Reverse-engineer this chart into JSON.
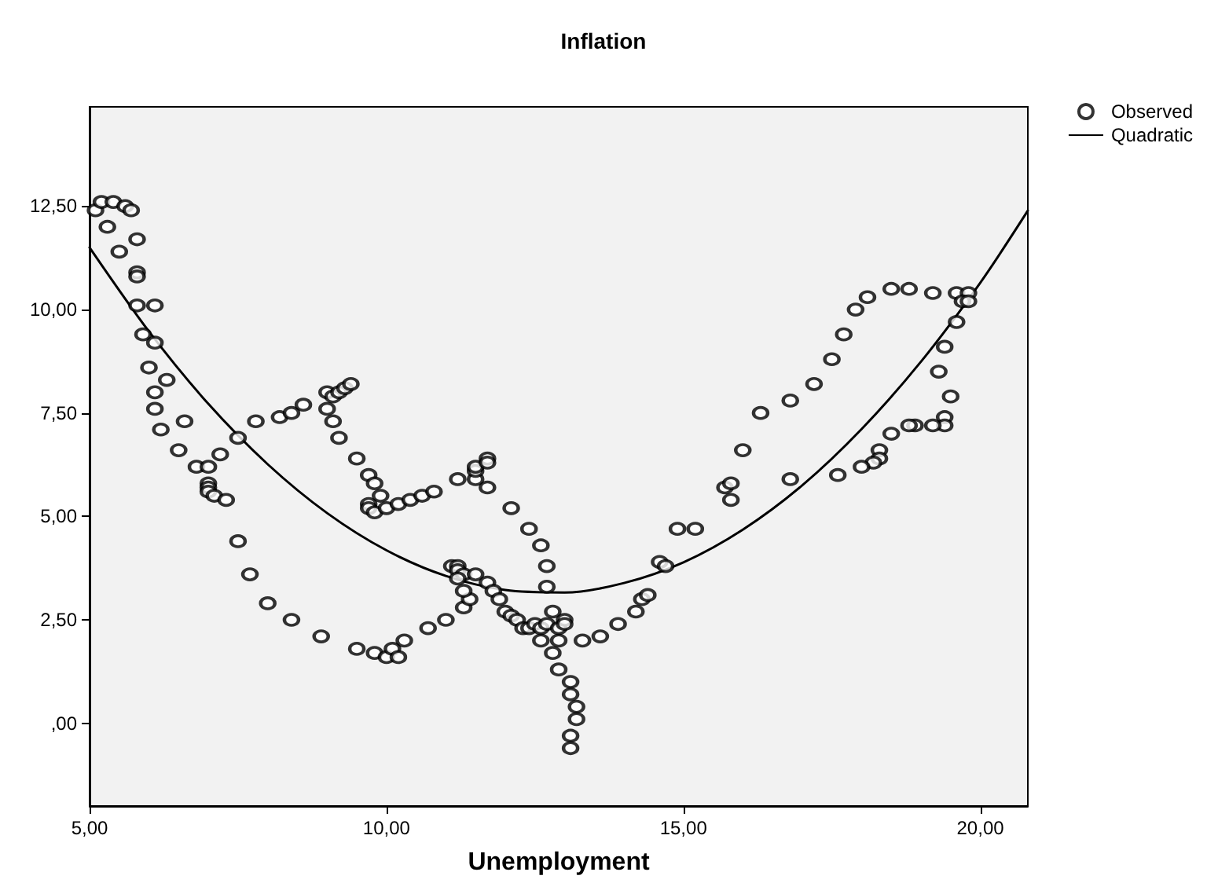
{
  "chart_data": {
    "type": "scatter",
    "title": "Inflation",
    "xlabel": "Unemployment",
    "xlim": [
      5,
      20.8
    ],
    "ylim": [
      -2,
      14.9
    ],
    "xticks": [
      {
        "value": 5,
        "label": "5,00"
      },
      {
        "value": 10,
        "label": "10,00"
      },
      {
        "value": 15,
        "label": "15,00"
      },
      {
        "value": 20,
        "label": "20,00"
      }
    ],
    "yticks": [
      {
        "value": 0,
        "label": ",00"
      },
      {
        "value": 2.5,
        "label": "2,50"
      },
      {
        "value": 5,
        "label": "5,00"
      },
      {
        "value": 7.5,
        "label": "7,50"
      },
      {
        "value": 10,
        "label": "10,00"
      },
      {
        "value": 12.5,
        "label": "12,50"
      }
    ],
    "grid": false,
    "legend": "top right",
    "series": [
      {
        "name": "Observed",
        "marker": "circle",
        "color": "#000000",
        "x": [
          5.1,
          5.2,
          5.4,
          5.3,
          5.6,
          5.7,
          5.5,
          5.8,
          5.8,
          5.8,
          5.8,
          6.1,
          5.9,
          6.1,
          6.0,
          6.1,
          6.3,
          6.1,
          6.2,
          6.6,
          6.5,
          6.8,
          7.0,
          7.0,
          7.0,
          7.0,
          7.1,
          7.3,
          7.2,
          7.5,
          7.5,
          7.7,
          8.0,
          8.4,
          8.9,
          7.8,
          8.2,
          8.4,
          8.6,
          9.0,
          9.1,
          9.2,
          9.3,
          9.4,
          9.0,
          9.1,
          9.2,
          9.5,
          9.7,
          9.8,
          9.9,
          9.7,
          9.7,
          9.8,
          10.0,
          10.2,
          10.4,
          10.6,
          10.8,
          11.2,
          11.5,
          11.5,
          11.5,
          11.7,
          11.7,
          11.7,
          12.1,
          12.4,
          12.6,
          12.7,
          12.7,
          9.5,
          9.8,
          10.0,
          10.1,
          10.2,
          10.3,
          10.7,
          11.0,
          11.3,
          11.4,
          11.3,
          11.1,
          11.2,
          11.2,
          11.3,
          11.2,
          11.5,
          11.7,
          11.8,
          11.9,
          12.0,
          12.1,
          12.2,
          12.3,
          12.4,
          12.5,
          12.6,
          12.6,
          12.7,
          12.8,
          12.8,
          12.9,
          12.9,
          13.0,
          13.0,
          12.9,
          13.1,
          13.1,
          13.2,
          13.2,
          13.1,
          13.1,
          13.3,
          13.6,
          13.9,
          14.2,
          14.3,
          14.4,
          14.6,
          14.7,
          14.9,
          15.2,
          15.7,
          15.8,
          15.8,
          16.0,
          16.3,
          16.8,
          16.8,
          17.2,
          17.5,
          17.7,
          17.9,
          18.1,
          18.5,
          18.8,
          19.2,
          19.6,
          19.8,
          19.7,
          19.8,
          19.6,
          19.4,
          19.3,
          19.5,
          19.4,
          19.4,
          19.2,
          18.9,
          18.8,
          18.5,
          18.3,
          18.3,
          18.2,
          18.0,
          17.6
        ],
        "values": [
          12.4,
          12.6,
          12.6,
          12.0,
          12.5,
          12.4,
          11.4,
          11.7,
          10.9,
          10.8,
          10.1,
          10.1,
          9.4,
          9.2,
          8.6,
          8.0,
          8.3,
          7.6,
          7.1,
          7.3,
          6.6,
          6.2,
          6.2,
          5.8,
          5.7,
          5.6,
          5.5,
          5.4,
          6.5,
          6.9,
          4.4,
          3.6,
          2.9,
          2.5,
          2.1,
          7.3,
          7.4,
          7.5,
          7.7,
          8.0,
          7.9,
          8.0,
          8.1,
          8.2,
          7.6,
          7.3,
          6.9,
          6.4,
          6.0,
          5.8,
          5.5,
          5.3,
          5.2,
          5.1,
          5.2,
          5.3,
          5.4,
          5.5,
          5.6,
          5.9,
          5.9,
          6.1,
          6.2,
          6.4,
          6.3,
          5.7,
          5.2,
          4.7,
          4.3,
          3.8,
          3.3,
          1.8,
          1.7,
          1.6,
          1.8,
          1.6,
          2.0,
          2.3,
          2.5,
          2.8,
          3.0,
          3.2,
          3.8,
          3.8,
          3.7,
          3.6,
          3.5,
          3.6,
          3.4,
          3.2,
          3.0,
          2.7,
          2.6,
          2.5,
          2.3,
          2.3,
          2.4,
          2.3,
          2.0,
          2.4,
          2.7,
          1.7,
          2.0,
          2.3,
          2.5,
          2.4,
          1.3,
          1.0,
          0.7,
          0.4,
          0.1,
          -0.3,
          -0.6,
          2.0,
          2.1,
          2.4,
          2.7,
          3.0,
          3.1,
          3.9,
          3.8,
          4.7,
          4.7,
          5.7,
          5.8,
          5.4,
          6.6,
          7.5,
          7.8,
          5.9,
          8.2,
          8.8,
          9.4,
          10.0,
          10.3,
          10.5,
          10.5,
          10.4,
          10.4,
          10.4,
          10.2,
          10.2,
          9.7,
          9.1,
          8.5,
          7.9,
          7.4,
          7.2,
          7.2,
          7.2,
          7.2,
          7.0,
          6.6,
          6.4,
          6.3,
          6.2,
          6.0
        ]
      },
      {
        "name": "Quadratic",
        "type": "line",
        "marker": "none",
        "line_style": "solid",
        "color": "#000000",
        "x": [
          5,
          6,
          7,
          8,
          9,
          10,
          11,
          12,
          13,
          14,
          15,
          16,
          17,
          18,
          19,
          20,
          20.8
        ],
        "values": [
          11.5,
          9.47,
          7.72,
          6.26,
          5.08,
          4.18,
          3.56,
          3.22,
          3.16,
          3.39,
          3.89,
          4.68,
          5.75,
          7.11,
          8.74,
          10.65,
          12.39
        ]
      }
    ]
  }
}
